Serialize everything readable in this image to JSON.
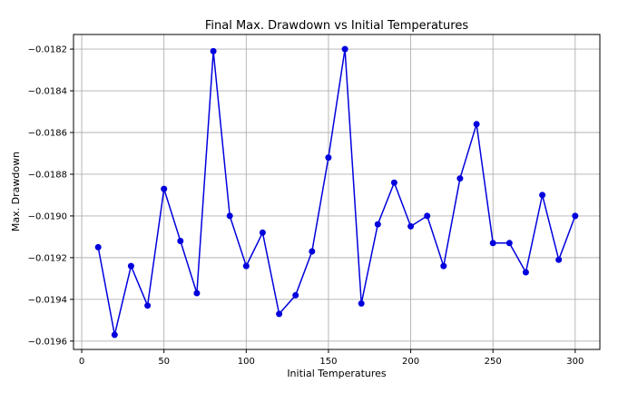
{
  "chart_data": {
    "type": "line",
    "title": "Final Max. Drawdown vs Initial Temperatures",
    "xlabel": "Initial Temperatures",
    "ylabel": "Max. Drawdown",
    "xlim": [
      -5,
      315
    ],
    "ylim": [
      -0.01964,
      -0.01813
    ],
    "xticks": [
      0,
      50,
      100,
      150,
      200,
      250,
      300
    ],
    "xtick_labels": [
      "0",
      "50",
      "100",
      "150",
      "200",
      "250",
      "300"
    ],
    "yticks": [
      -0.0196,
      -0.0194,
      -0.0192,
      -0.019,
      -0.0188,
      -0.0186,
      -0.0184,
      -0.0182
    ],
    "ytick_labels": [
      "−0.0196",
      "−0.0194",
      "−0.0192",
      "−0.0190",
      "−0.0188",
      "−0.0186",
      "−0.0184",
      "−0.0182"
    ],
    "grid": true,
    "color": "#0000dd",
    "series": [
      {
        "x": [
          10,
          20,
          30,
          40,
          50,
          60,
          70,
          80,
          90,
          100,
          110,
          120,
          130,
          140,
          150,
          160,
          170,
          180,
          190,
          200,
          210,
          220,
          230,
          240,
          250,
          260,
          270,
          280,
          290,
          300
        ],
        "values": [
          -0.01915,
          -0.01957,
          -0.01924,
          -0.01943,
          -0.01887,
          -0.01912,
          -0.01937,
          -0.01821,
          -0.019,
          -0.01924,
          -0.01908,
          -0.01947,
          -0.01938,
          -0.01917,
          -0.01872,
          -0.0182,
          -0.01942,
          -0.01904,
          -0.01884,
          -0.01905,
          -0.019,
          -0.01924,
          -0.01882,
          -0.01856,
          -0.01913,
          -0.01913,
          -0.01927,
          -0.0189,
          -0.01921,
          -0.019
        ]
      }
    ]
  }
}
